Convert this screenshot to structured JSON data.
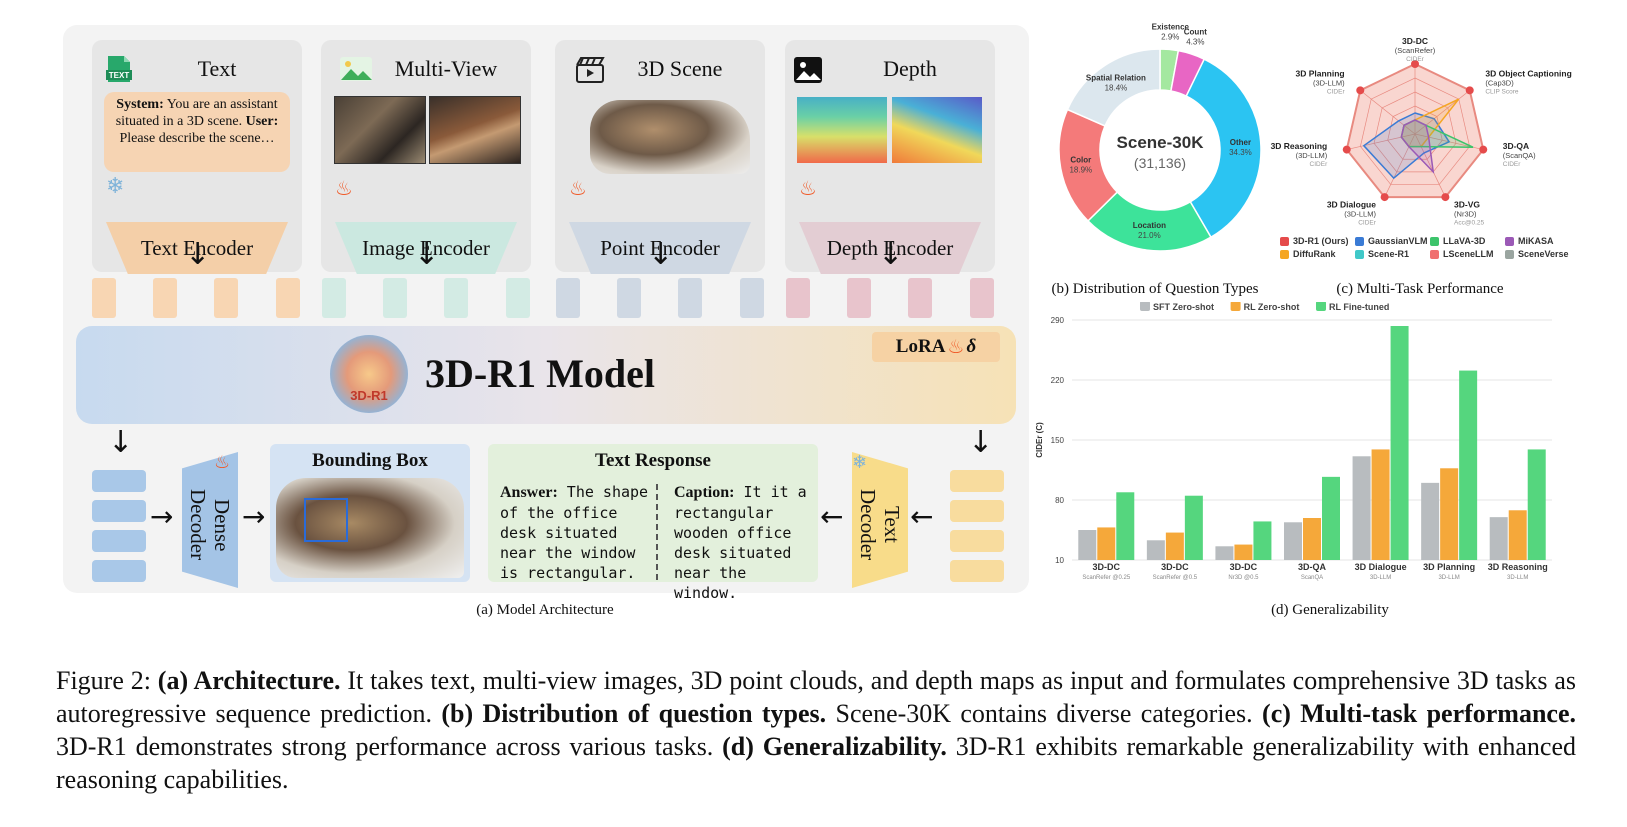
{
  "architecture": {
    "modules": [
      {
        "title": "Text",
        "encoder": "Text Encoder",
        "icon": "text-file-icon",
        "color": "#f8d6b3"
      },
      {
        "title": "Multi-View",
        "encoder": "Image Encoder",
        "icon": "image-icon",
        "color": "#d3ebe4"
      },
      {
        "title": "3D Scene",
        "encoder": "Point Encoder",
        "icon": "clapperboard-icon",
        "color": "#d3dce6"
      },
      {
        "title": "Depth",
        "encoder": "Depth Encoder",
        "icon": "picture-icon",
        "color": "#e6d3d8"
      }
    ],
    "text_prompt_system_label": "System:",
    "text_prompt_system": "You are an assistant situated in a 3D scene.",
    "text_prompt_user_label": "User:",
    "text_prompt_user": "Please describe the scene…",
    "text_icon_label": "TEXT",
    "model_title": "3D-R1 Model",
    "logo_text": "3D-R1",
    "lora_label": "LoRA",
    "lora_symbol": "δ",
    "dense_decoder": "Dense Decoder",
    "text_decoder": "Text Decoder",
    "bbox_title": "Bounding Box",
    "text_response_title": "Text Response",
    "answer_label": "Answer:",
    "answer_text": "The shape of the office desk situated near the window is rectangular.",
    "caption_label": "Caption:",
    "caption_text": "It it a rectangular wooden office desk situated near the window.",
    "panel_caption": "(a) Model Architecture",
    "colors": {
      "text": "#f8d6b3",
      "image": "#d3ebe4",
      "point": "#d3dce6",
      "depth": "#e6d3d8"
    }
  },
  "donut": {
    "center_title": "Scene-30K",
    "center_count": "(31,136)",
    "segments": [
      {
        "label": "Existence",
        "value": 2.9,
        "display": "2.9%",
        "color": "#a4e8a0"
      },
      {
        "label": "Count",
        "value": 4.3,
        "display": "4.3%",
        "color": "#e866c4"
      },
      {
        "label": "Other",
        "value": 34.3,
        "display": "34.3%",
        "color": "#2bc4f2"
      },
      {
        "label": "Location",
        "value": 21.0,
        "display": "21.0%",
        "color": "#3de39a"
      },
      {
        "label": "Color",
        "value": 18.9,
        "display": "18.9%",
        "color": "#f47a7a"
      },
      {
        "label": "Spatial Relation",
        "value": 18.4,
        "display": "18.4%",
        "color": "#dce7ee"
      }
    ],
    "panel_caption": "(b) Distribution of Question Types"
  },
  "radar": {
    "axes": [
      {
        "name": "3D-DC",
        "sub": "(ScanRefer)",
        "metric": "CIDEr"
      },
      {
        "name": "3D Object Captioning",
        "sub": "(Cap3D)",
        "metric": "CLIP Score"
      },
      {
        "name": "3D-QA",
        "sub": "(ScanQA)",
        "metric": "CIDEr"
      },
      {
        "name": "3D-VG",
        "sub": "(Nr3D)",
        "metric": "Acc@0.25"
      },
      {
        "name": "3D Dialogue",
        "sub": "(3D-LLM)",
        "metric": "CIDEr"
      },
      {
        "name": "3D Reasoning",
        "sub": "(3D-LLM)",
        "metric": "CIDEr"
      },
      {
        "name": "3D Planning",
        "sub": "(3D-LLM)",
        "metric": "CIDEr"
      }
    ],
    "legend": [
      {
        "name": "3D-R1 (Ours)",
        "color": "#e54b4b"
      },
      {
        "name": "GaussianVLM",
        "color": "#3a7bd5"
      },
      {
        "name": "LLaVA-3D",
        "color": "#3cc46b"
      },
      {
        "name": "MiKASA",
        "color": "#9b59b6"
      },
      {
        "name": "DiffuRank",
        "color": "#f5a623"
      },
      {
        "name": "Scene-R1",
        "color": "#40c8c8"
      },
      {
        "name": "LSceneLLM",
        "color": "#f07070"
      },
      {
        "name": "SceneVerse",
        "color": "#9aa5a0"
      }
    ],
    "panel_caption": "(c) Multi-Task Performance"
  },
  "chart_data": {
    "type": "bar",
    "title": "",
    "xlabel": "",
    "ylabel": "CIDEr (C)",
    "ylim": [
      10,
      290
    ],
    "yticks": [
      10,
      80,
      150,
      220,
      290
    ],
    "categories": [
      "3D-DC",
      "3D-DC",
      "3D-DC",
      "3D-QA",
      "3D Dialogue",
      "3D Planning",
      "3D Reasoning"
    ],
    "subcategories": [
      "ScanRefer @0.25",
      "ScanRefer @0.5",
      "Nr3D @0.5",
      "ScanQA",
      "3D-LLM",
      "3D-LLM",
      "3D-LLM"
    ],
    "series": [
      {
        "name": "SFT Zero-shot",
        "color": "#b8bcbf",
        "values": [
          45,
          33,
          26,
          54,
          131,
          100,
          60
        ]
      },
      {
        "name": "RL Zero-shot",
        "color": "#f5a83a",
        "values": [
          48,
          42,
          28,
          59,
          139,
          117,
          68
        ]
      },
      {
        "name": "RL Fine-tuned",
        "color": "#55d67e",
        "values": [
          89,
          85,
          55,
          107,
          283,
          231,
          139
        ]
      }
    ],
    "grid": true,
    "legend_position": "top",
    "panel_caption": "(d) Generalizability"
  },
  "figure_caption": {
    "prefix": "Figure 2: ",
    "a_label": "(a) Architecture.",
    "a_text": " It takes text, multi-view images, 3D point clouds, and depth maps as input and formulates comprehensive 3D tasks as autoregressive sequence prediction. ",
    "b_label": "(b) Distribution of question types.",
    "b_text": " Scene-30K contains diverse categories. ",
    "c_label": "(c) Multi-task performance.",
    "c_text": " 3D-R1 demonstrates strong performance across various tasks. ",
    "d_label": "(d) Generalizability.",
    "d_text": " 3D-R1 exhibits remarkable generalizability with enhanced reasoning capabilities."
  }
}
